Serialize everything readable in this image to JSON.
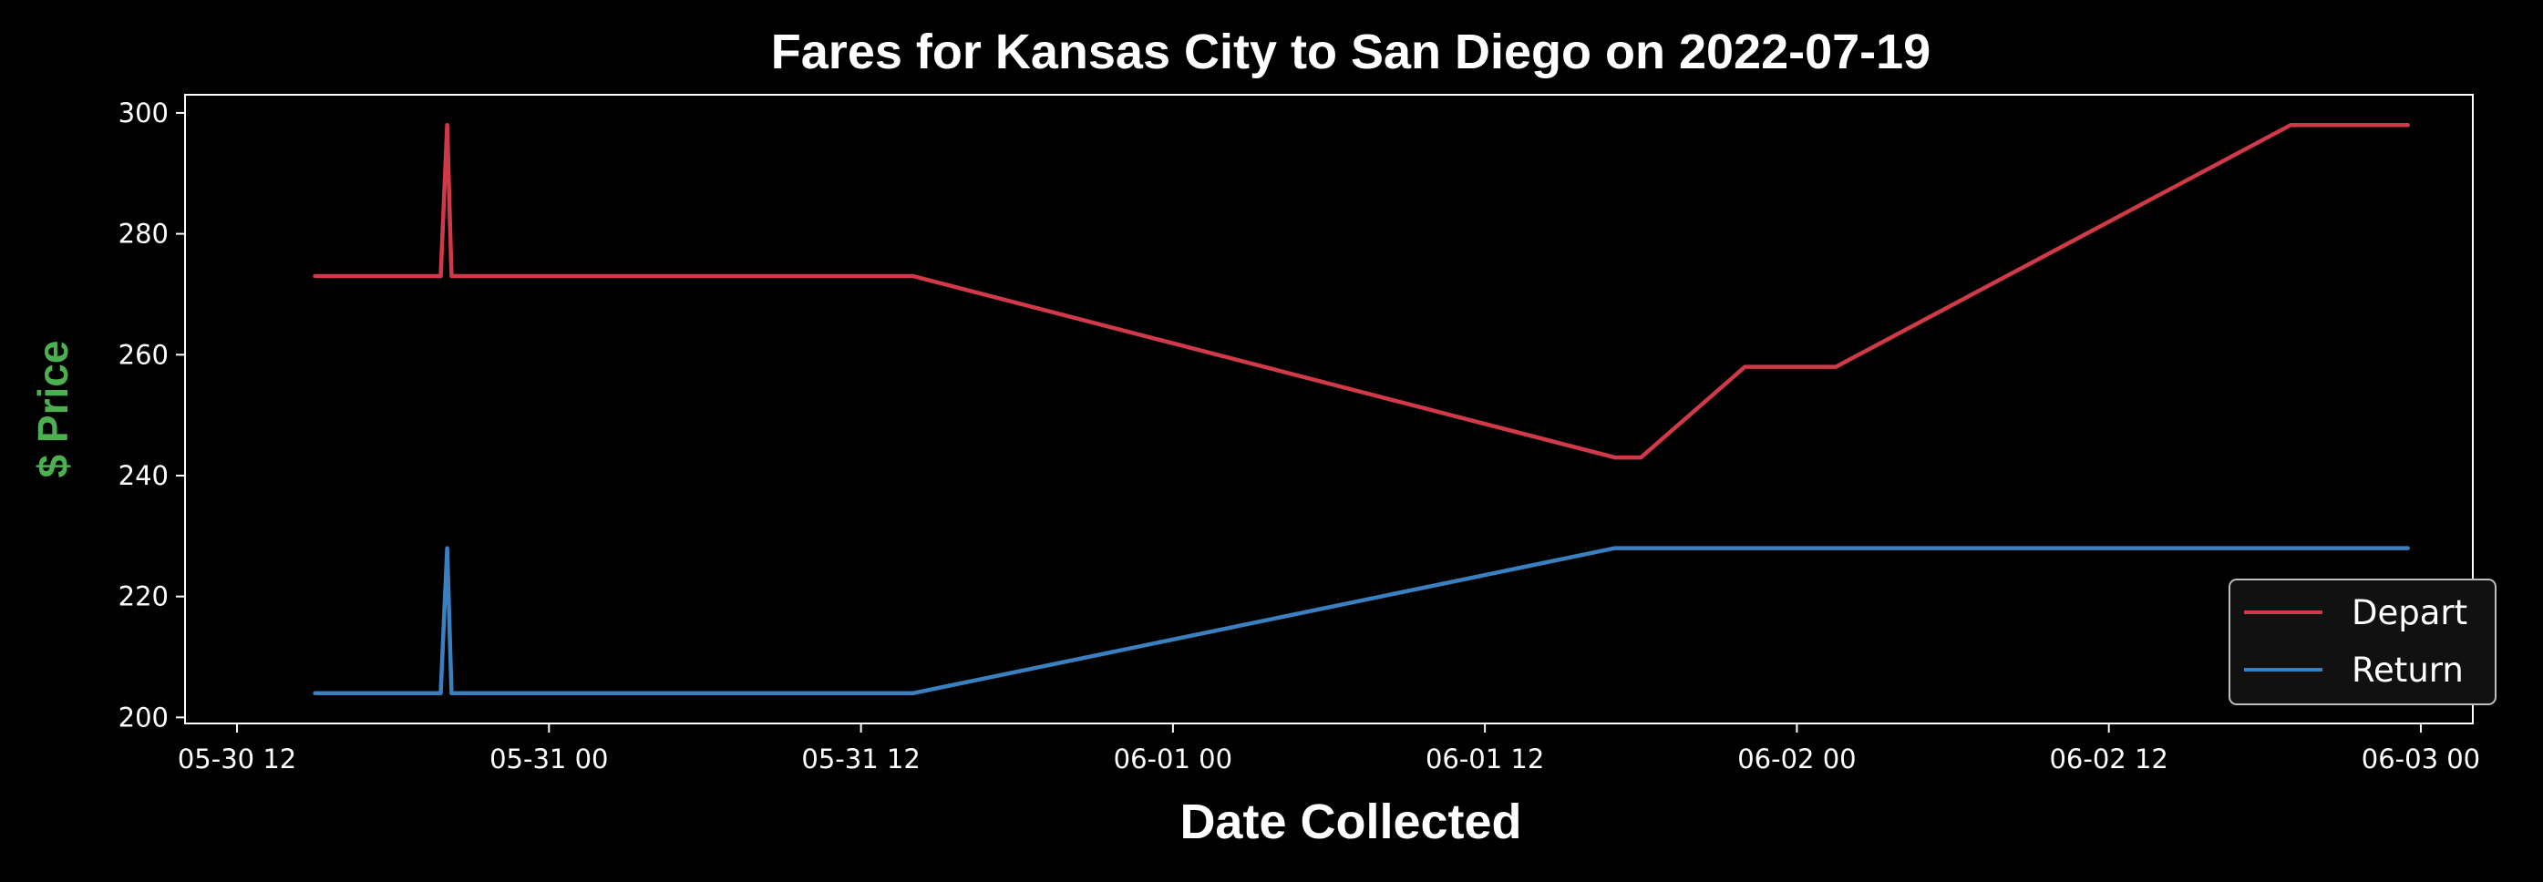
{
  "chart_data": {
    "type": "line",
    "title": "Fares for Kansas City to San Diego on 2022-07-19",
    "xlabel": "Date Collected",
    "ylabel": "$ Price",
    "ylabel_color": "#4caf50",
    "background": "#000000",
    "grid": false,
    "legend_position": "lower-right",
    "x_range": [
      "2022-05-30 10:00",
      "2022-06-03 02:00"
    ],
    "y_range": [
      199,
      303
    ],
    "x_ticks": [
      "05-30 12",
      "05-31 00",
      "05-31 12",
      "06-01 00",
      "06-01 12",
      "06-02 00",
      "06-02 12",
      "06-03 00"
    ],
    "x_tick_dates": [
      "2022-05-30 12:00",
      "2022-05-31 00:00",
      "2022-05-31 12:00",
      "2022-06-01 00:00",
      "2022-06-01 12:00",
      "2022-06-02 00:00",
      "2022-06-02 12:00",
      "2022-06-03 00:00"
    ],
    "y_ticks": [
      200,
      220,
      240,
      260,
      280,
      300
    ],
    "series": [
      {
        "name": "Depart",
        "color": "#d03a48",
        "points": [
          [
            "2022-05-30 15:00",
            273
          ],
          [
            "2022-05-30 19:50",
            273
          ],
          [
            "2022-05-30 20:05",
            298
          ],
          [
            "2022-05-30 20:15",
            273
          ],
          [
            "2022-05-31 14:00",
            273
          ],
          [
            "2022-06-01 17:00",
            243
          ],
          [
            "2022-06-01 18:00",
            243
          ],
          [
            "2022-06-01 22:00",
            258
          ],
          [
            "2022-06-02 01:30",
            258
          ],
          [
            "2022-06-02 19:00",
            298
          ],
          [
            "2022-06-02 23:30",
            298
          ]
        ]
      },
      {
        "name": "Return",
        "color": "#3a80c0",
        "points": [
          [
            "2022-05-30 15:00",
            204
          ],
          [
            "2022-05-30 19:50",
            204
          ],
          [
            "2022-05-30 20:05",
            228
          ],
          [
            "2022-05-30 20:15",
            204
          ],
          [
            "2022-05-31 14:00",
            204
          ],
          [
            "2022-06-01 17:00",
            228
          ],
          [
            "2022-06-02 23:30",
            228
          ]
        ]
      }
    ]
  }
}
